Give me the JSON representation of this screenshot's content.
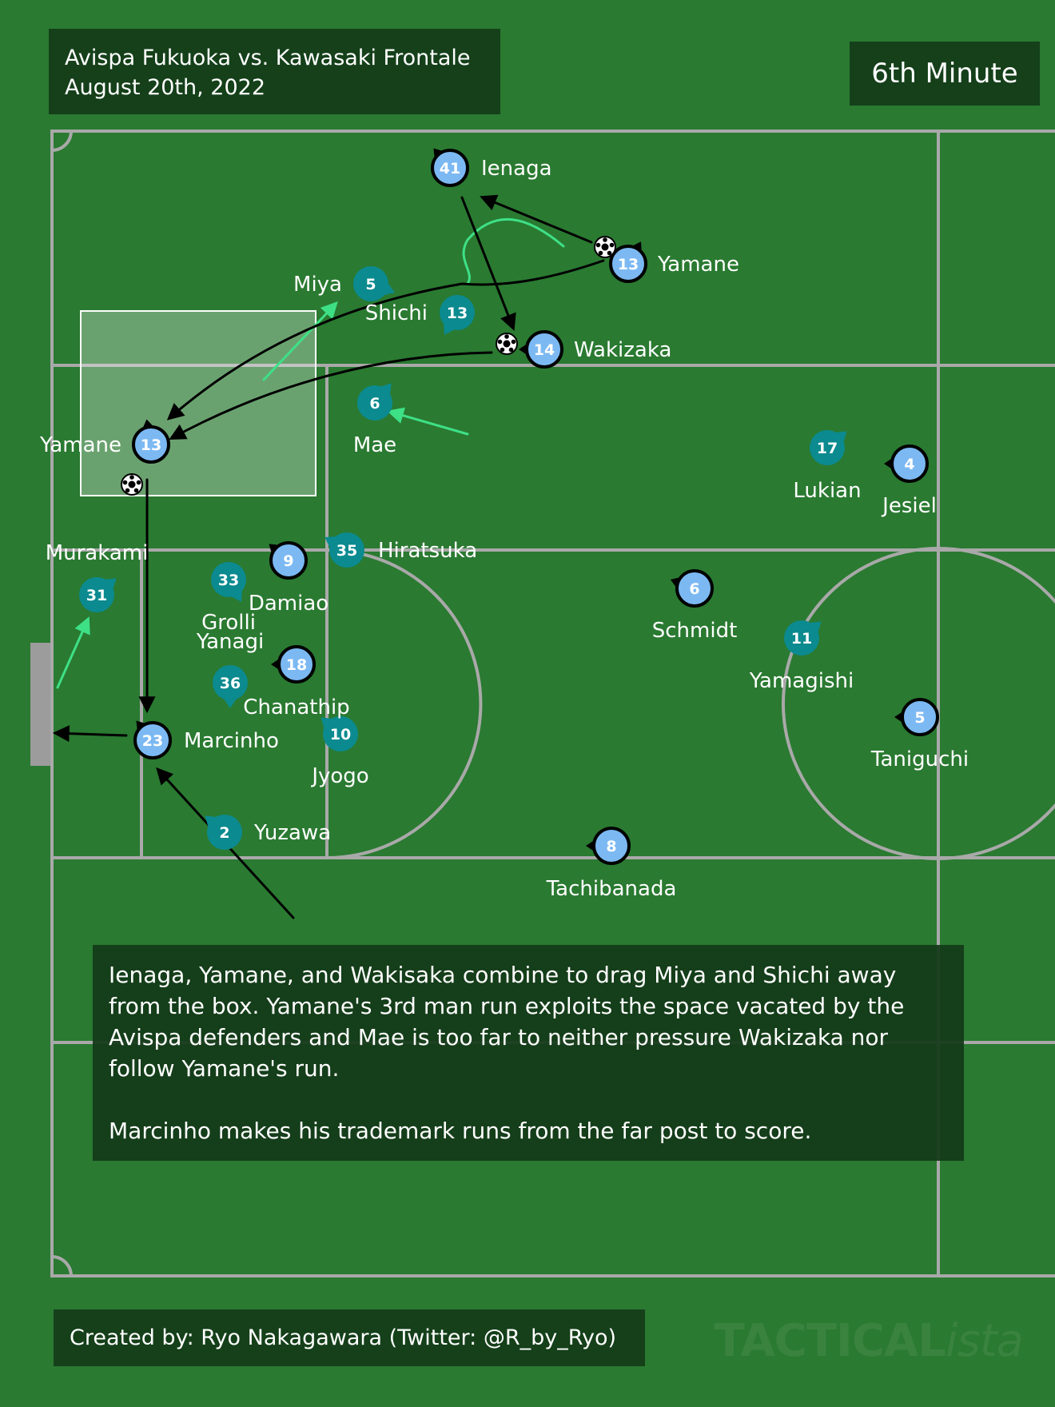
{
  "header": {
    "match": "Avispa Fukuoka vs. Kawasaki Frontale",
    "date": "August 20th, 2022",
    "minute": "6th Minute"
  },
  "description": {
    "paragraph1": "Ienaga, Yamane, and Wakisaka combine to drag Miya and Shichi away from the box. Yamane's 3rd man run exploits the space vacated by the Avispa defenders and Mae is too far to neither pressure Wakizaka nor follow Yamane's run.",
    "paragraph2": "Marcinho makes his trademark runs from the far post to score."
  },
  "credit": "Created by: Ryo Nakagawara (Twitter: @R_by_Ryo)",
  "watermark": {
    "bold": "TACTICAL",
    "light": "ista"
  },
  "colors": {
    "pitch": "#2a7a31",
    "lines": "#a9a9a9",
    "kawasaki": "#7cb9f3",
    "avispa": "#0b8a8f",
    "dribble": "#3ee086",
    "arrow": "#000000"
  },
  "kawasaki_players": [
    {
      "number": "41",
      "name": "Ienaga"
    },
    {
      "number": "13",
      "name": "Yamane"
    },
    {
      "number": "14",
      "name": "Wakizaka"
    },
    {
      "number": "13",
      "name": "Yamane"
    },
    {
      "number": "4",
      "name": "Jesiel"
    },
    {
      "number": "9",
      "name": "Damiao"
    },
    {
      "number": "6",
      "name": "Schmidt"
    },
    {
      "number": "18",
      "name": "Chanathip"
    },
    {
      "number": "23",
      "name": "Marcinho"
    },
    {
      "number": "5",
      "name": "Taniguchi"
    },
    {
      "number": "8",
      "name": "Tachibanada"
    }
  ],
  "avispa_players": [
    {
      "number": "5",
      "name": "Miya"
    },
    {
      "number": "13",
      "name": "Shichi"
    },
    {
      "number": "6",
      "name": "Mae"
    },
    {
      "number": "17",
      "name": "Lukian"
    },
    {
      "number": "35",
      "name": "Hiratsuka"
    },
    {
      "number": "33",
      "name": "Grolli"
    },
    {
      "number": "31",
      "name": "Murakami"
    },
    {
      "number": "36",
      "name": "Yanagi"
    },
    {
      "number": "10",
      "name": "Jyogo"
    },
    {
      "number": "2",
      "name": "Yuzawa"
    },
    {
      "number": "11",
      "name": "Yamagishi"
    }
  ]
}
